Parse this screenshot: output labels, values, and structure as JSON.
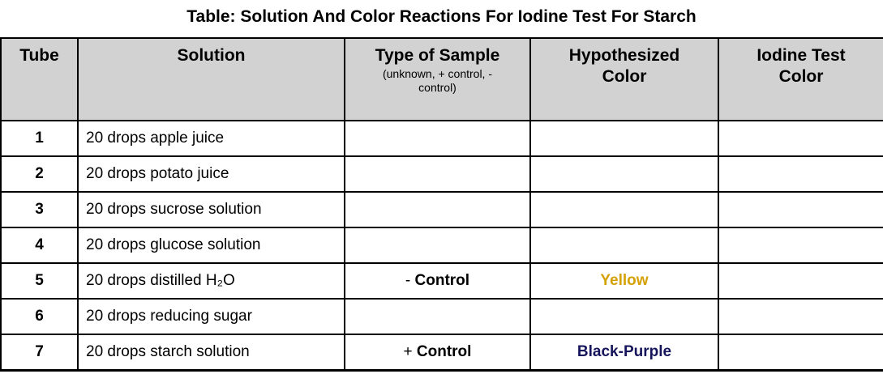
{
  "title": "Table: Solution And Color Reactions For Iodine Test For Starch",
  "colors": {
    "header_bg": "#d2d2d2",
    "border": "#000000",
    "yellow_text": "#D4A106",
    "black_purple_text": "#16155C"
  },
  "table": {
    "headers": [
      {
        "label": "Tube"
      },
      {
        "label": "Solution"
      },
      {
        "label": "Type of Sample",
        "sub": "(unknown, + control, - control)"
      },
      {
        "label": "Hypothesized Color"
      },
      {
        "label": "Iodine Test Color"
      }
    ],
    "rows": [
      {
        "tube": "1",
        "solution": "20 drops apple juice",
        "type_sign": "",
        "type_word": "",
        "hyp": "",
        "hyp_hex": "",
        "iodine": ""
      },
      {
        "tube": "2",
        "solution": "20 drops potato juice",
        "type_sign": "",
        "type_word": "",
        "hyp": "",
        "hyp_hex": "",
        "iodine": ""
      },
      {
        "tube": "3",
        "solution": "20 drops sucrose solution",
        "type_sign": "",
        "type_word": "",
        "hyp": "",
        "hyp_hex": "",
        "iodine": ""
      },
      {
        "tube": "4",
        "solution": "20 drops glucose solution",
        "type_sign": "",
        "type_word": "",
        "hyp": "",
        "hyp_hex": "",
        "iodine": ""
      },
      {
        "tube": "5",
        "solution": "20 drops distilled H₂O",
        "type_sign": "- ",
        "type_word": "Control",
        "hyp": "Yellow",
        "hyp_hex": "#D4A106",
        "iodine": ""
      },
      {
        "tube": "6",
        "solution": "20 drops reducing sugar",
        "type_sign": "",
        "type_word": "",
        "hyp": "",
        "hyp_hex": "",
        "iodine": ""
      },
      {
        "tube": "7",
        "solution": "20 drops starch solution",
        "type_sign": "+ ",
        "type_word": "Control",
        "hyp": "Black-Purple",
        "hyp_hex": "#16155C",
        "iodine": ""
      }
    ]
  }
}
